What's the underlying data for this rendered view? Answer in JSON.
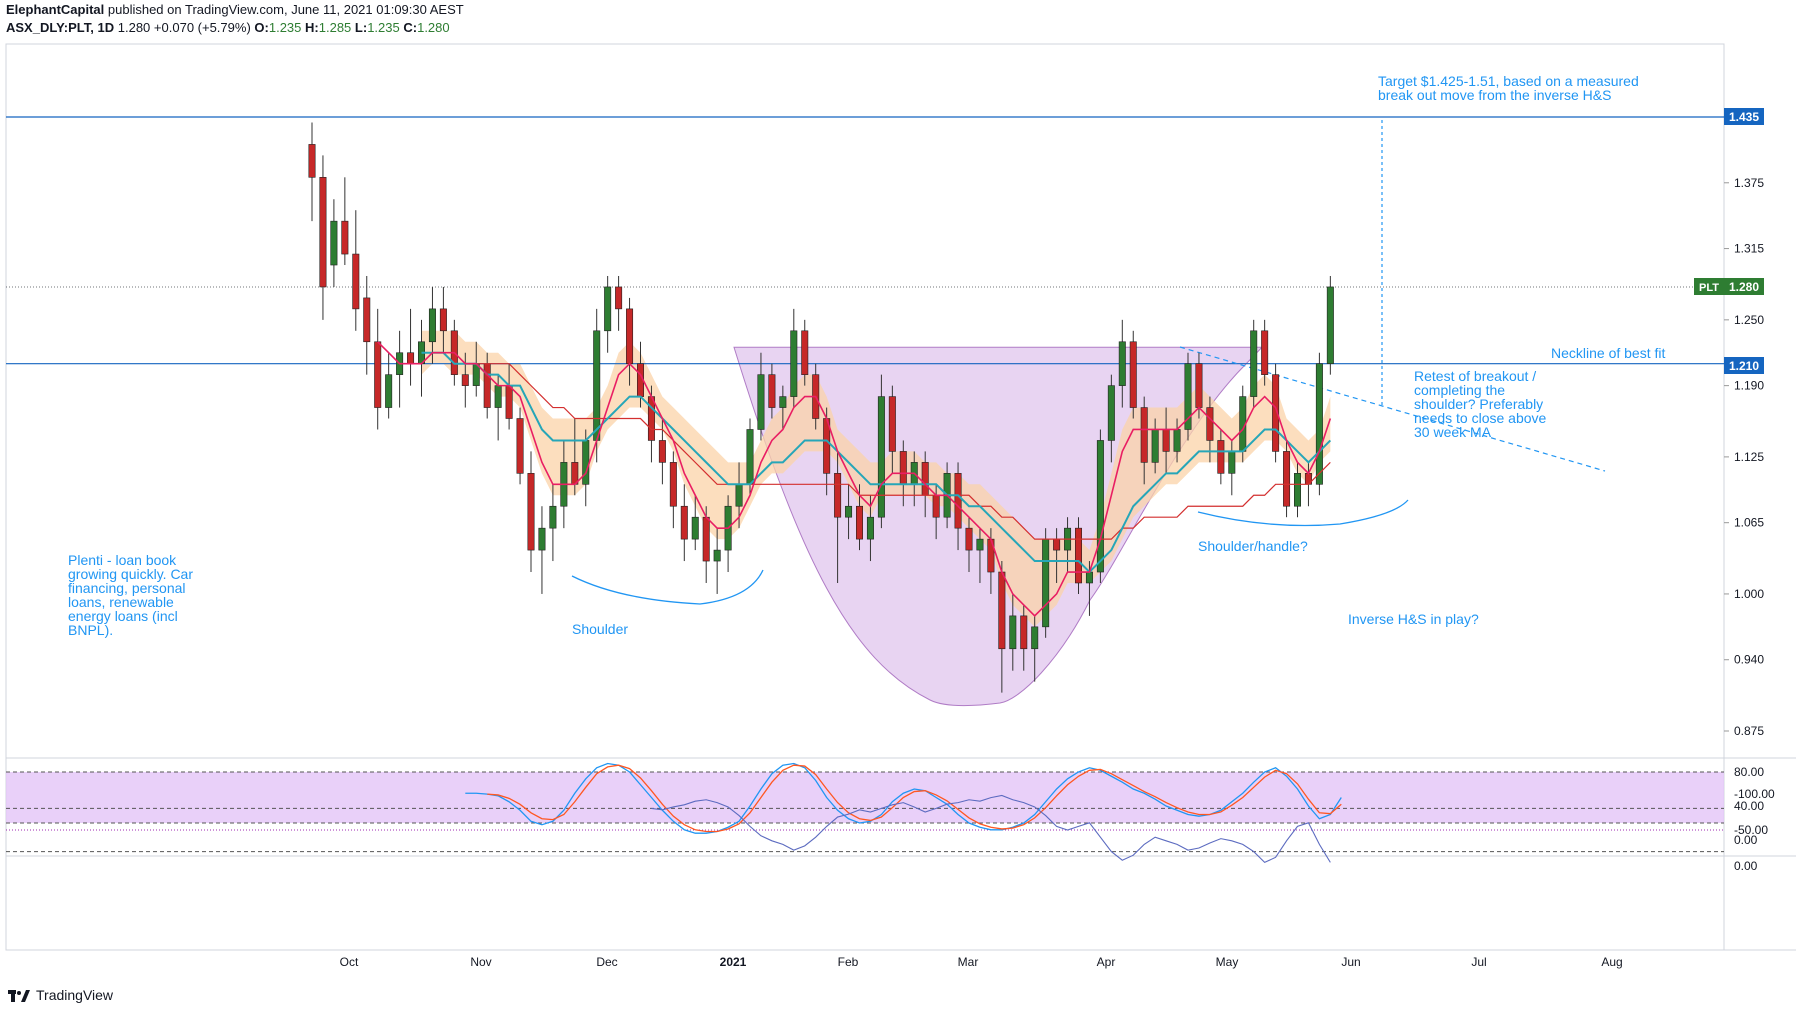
{
  "header": {
    "publisher": "ElephantCapital",
    "published_text": "published on TradingView.com, June 11, 2021 01:09:30 AEST",
    "symbol": "ASX_DLY:PLT, 1D",
    "last": "1.280",
    "change": "+0.070 (+5.79%)",
    "open_label": "O:",
    "open": "1.235",
    "high_label": "H:",
    "high": "1.285",
    "low_label": "L:",
    "low": "1.235",
    "close_label": "C:",
    "close": "1.280"
  },
  "footer": {
    "brand": "TradingView"
  },
  "colors": {
    "up": "#2e7d32",
    "down": "#c62828",
    "accent": "#2196f3",
    "ema_fast": "#e91e63",
    "ema_mid": "#26a6b8",
    "ema_slow": "#d32f2f",
    "band": "#fbd3a8",
    "pattern": "#d9b8ea",
    "stoch_k": "#2196f3",
    "stoch_d": "#ff5722",
    "osc_bg": "#e3c4f7",
    "osc2": "#5c6bc0"
  },
  "annotations": {
    "target": [
      "Target $1.425-1.51, based on a measured",
      "break out move from the inverse H&S"
    ],
    "neckline": "Neckline of best fit",
    "retest": [
      "Retest of breakout /",
      "completing the",
      "shoulder? Preferably",
      "needs to close above",
      "30 week MA"
    ],
    "shoulder_handle": "Shoulder/handle?",
    "inverse_hs": "Inverse H&S in play?",
    "shoulder": "Shoulder",
    "plenti": [
      "Plenti - loan book",
      "growing quickly. Car",
      "financing, personal",
      "loans, renewable",
      "energy loans (incl",
      "BNPL)."
    ]
  },
  "chart_data": [
    {
      "type": "candlestick",
      "symbol": "PLT",
      "price_axis": [
        "1.435",
        "1.375",
        "1.315",
        "1.250",
        "1.190",
        "1.125",
        "1.065",
        "1.000",
        "0.940",
        "0.875"
      ],
      "x_axis": [
        "Oct",
        "Nov",
        "Dec",
        "2021",
        "Feb",
        "Mar",
        "Apr",
        "May",
        "Jun",
        "Jul",
        "Aug"
      ],
      "last_price_label": "PLT",
      "last_price": "1.280",
      "levels": [
        {
          "label": "1.435",
          "value": 1.435
        },
        {
          "label": "1.210",
          "value": 1.21
        }
      ],
      "candles": [
        [
          1.41,
          1.43,
          1.34,
          1.38
        ],
        [
          1.38,
          1.4,
          1.25,
          1.28
        ],
        [
          1.3,
          1.36,
          1.28,
          1.34
        ],
        [
          1.34,
          1.38,
          1.3,
          1.31
        ],
        [
          1.31,
          1.35,
          1.24,
          1.26
        ],
        [
          1.27,
          1.29,
          1.2,
          1.23
        ],
        [
          1.23,
          1.26,
          1.15,
          1.17
        ],
        [
          1.17,
          1.22,
          1.16,
          1.2
        ],
        [
          1.2,
          1.24,
          1.17,
          1.22
        ],
        [
          1.22,
          1.26,
          1.19,
          1.21
        ],
        [
          1.21,
          1.25,
          1.18,
          1.23
        ],
        [
          1.23,
          1.28,
          1.21,
          1.26
        ],
        [
          1.26,
          1.28,
          1.22,
          1.24
        ],
        [
          1.24,
          1.25,
          1.19,
          1.2
        ],
        [
          1.2,
          1.22,
          1.17,
          1.19
        ],
        [
          1.19,
          1.23,
          1.18,
          1.21
        ],
        [
          1.21,
          1.22,
          1.16,
          1.17
        ],
        [
          1.17,
          1.2,
          1.14,
          1.19
        ],
        [
          1.19,
          1.21,
          1.15,
          1.16
        ],
        [
          1.16,
          1.17,
          1.1,
          1.11
        ],
        [
          1.11,
          1.13,
          1.02,
          1.04
        ],
        [
          1.04,
          1.08,
          1.0,
          1.06
        ],
        [
          1.06,
          1.1,
          1.03,
          1.08
        ],
        [
          1.08,
          1.14,
          1.06,
          1.12
        ],
        [
          1.12,
          1.16,
          1.09,
          1.1
        ],
        [
          1.1,
          1.15,
          1.08,
          1.14
        ],
        [
          1.14,
          1.26,
          1.12,
          1.24
        ],
        [
          1.24,
          1.29,
          1.22,
          1.28
        ],
        [
          1.28,
          1.29,
          1.24,
          1.26
        ],
        [
          1.26,
          1.27,
          1.19,
          1.21
        ],
        [
          1.21,
          1.23,
          1.17,
          1.18
        ],
        [
          1.18,
          1.19,
          1.12,
          1.14
        ],
        [
          1.14,
          1.16,
          1.1,
          1.12
        ],
        [
          1.12,
          1.13,
          1.06,
          1.08
        ],
        [
          1.08,
          1.1,
          1.03,
          1.05
        ],
        [
          1.05,
          1.09,
          1.04,
          1.07
        ],
        [
          1.07,
          1.08,
          1.01,
          1.03
        ],
        [
          1.03,
          1.06,
          1.0,
          1.04
        ],
        [
          1.04,
          1.09,
          1.02,
          1.08
        ],
        [
          1.08,
          1.12,
          1.06,
          1.1
        ],
        [
          1.1,
          1.16,
          1.09,
          1.15
        ],
        [
          1.15,
          1.22,
          1.14,
          1.2
        ],
        [
          1.2,
          1.21,
          1.16,
          1.17
        ],
        [
          1.17,
          1.19,
          1.15,
          1.18
        ],
        [
          1.18,
          1.26,
          1.17,
          1.24
        ],
        [
          1.24,
          1.25,
          1.19,
          1.2
        ],
        [
          1.2,
          1.21,
          1.15,
          1.16
        ],
        [
          1.16,
          1.17,
          1.09,
          1.11
        ],
        [
          1.11,
          1.13,
          1.01,
          1.07
        ],
        [
          1.07,
          1.1,
          1.05,
          1.08
        ],
        [
          1.08,
          1.1,
          1.04,
          1.05
        ],
        [
          1.05,
          1.09,
          1.03,
          1.07
        ],
        [
          1.07,
          1.2,
          1.06,
          1.18
        ],
        [
          1.18,
          1.19,
          1.11,
          1.13
        ],
        [
          1.13,
          1.14,
          1.08,
          1.1
        ],
        [
          1.1,
          1.13,
          1.08,
          1.12
        ],
        [
          1.12,
          1.13,
          1.07,
          1.09
        ],
        [
          1.09,
          1.1,
          1.05,
          1.07
        ],
        [
          1.07,
          1.12,
          1.06,
          1.11
        ],
        [
          1.11,
          1.12,
          1.04,
          1.06
        ],
        [
          1.06,
          1.07,
          1.02,
          1.04
        ],
        [
          1.04,
          1.06,
          1.01,
          1.05
        ],
        [
          1.05,
          1.06,
          1.0,
          1.02
        ],
        [
          1.02,
          1.03,
          0.91,
          0.95
        ],
        [
          0.95,
          1.0,
          0.93,
          0.98
        ],
        [
          0.98,
          0.99,
          0.93,
          0.95
        ],
        [
          0.95,
          0.98,
          0.92,
          0.97
        ],
        [
          0.97,
          1.06,
          0.96,
          1.05
        ],
        [
          1.05,
          1.06,
          1.01,
          1.04
        ],
        [
          1.04,
          1.07,
          1.02,
          1.06
        ],
        [
          1.06,
          1.07,
          1.0,
          1.01
        ],
        [
          1.01,
          1.03,
          0.98,
          1.02
        ],
        [
          1.02,
          1.15,
          1.01,
          1.14
        ],
        [
          1.14,
          1.2,
          1.12,
          1.19
        ],
        [
          1.19,
          1.25,
          1.17,
          1.23
        ],
        [
          1.23,
          1.24,
          1.16,
          1.17
        ],
        [
          1.17,
          1.18,
          1.1,
          1.12
        ],
        [
          1.12,
          1.16,
          1.11,
          1.15
        ],
        [
          1.15,
          1.17,
          1.11,
          1.13
        ],
        [
          1.13,
          1.16,
          1.12,
          1.15
        ],
        [
          1.15,
          1.22,
          1.14,
          1.21
        ],
        [
          1.21,
          1.22,
          1.16,
          1.17
        ],
        [
          1.17,
          1.18,
          1.12,
          1.14
        ],
        [
          1.14,
          1.15,
          1.1,
          1.11
        ],
        [
          1.11,
          1.14,
          1.09,
          1.13
        ],
        [
          1.13,
          1.19,
          1.12,
          1.18
        ],
        [
          1.18,
          1.25,
          1.17,
          1.24
        ],
        [
          1.24,
          1.25,
          1.19,
          1.2
        ],
        [
          1.2,
          1.21,
          1.12,
          1.13
        ],
        [
          1.13,
          1.14,
          1.07,
          1.08
        ],
        [
          1.08,
          1.12,
          1.07,
          1.11
        ],
        [
          1.11,
          1.12,
          1.08,
          1.1
        ],
        [
          1.1,
          1.22,
          1.09,
          1.21
        ],
        [
          1.21,
          1.29,
          1.2,
          1.28
        ]
      ],
      "ema_fast": [
        null,
        null,
        null,
        null,
        null,
        null,
        1.23,
        1.22,
        1.21,
        1.21,
        1.21,
        1.22,
        1.22,
        1.22,
        1.21,
        1.21,
        1.2,
        1.19,
        1.19,
        1.18,
        1.15,
        1.12,
        1.1,
        1.1,
        1.1,
        1.11,
        1.14,
        1.17,
        1.2,
        1.21,
        1.2,
        1.18,
        1.16,
        1.14,
        1.11,
        1.09,
        1.07,
        1.06,
        1.06,
        1.07,
        1.09,
        1.12,
        1.14,
        1.15,
        1.17,
        1.18,
        1.18,
        1.16,
        1.13,
        1.11,
        1.09,
        1.08,
        1.1,
        1.11,
        1.11,
        1.11,
        1.1,
        1.09,
        1.09,
        1.08,
        1.07,
        1.06,
        1.05,
        1.02,
        1.0,
        0.99,
        0.98,
        0.99,
        1.0,
        1.02,
        1.02,
        1.02,
        1.05,
        1.09,
        1.13,
        1.15,
        1.15,
        1.15,
        1.15,
        1.15,
        1.16,
        1.17,
        1.16,
        1.15,
        1.14,
        1.15,
        1.17,
        1.18,
        1.17,
        1.14,
        1.12,
        1.11,
        1.13,
        1.16
      ],
      "ema_mid": [
        null,
        null,
        null,
        null,
        null,
        null,
        null,
        null,
        null,
        null,
        1.22,
        1.22,
        1.22,
        1.21,
        1.21,
        1.21,
        1.2,
        1.2,
        1.19,
        1.19,
        1.17,
        1.15,
        1.14,
        1.14,
        1.14,
        1.14,
        1.15,
        1.16,
        1.17,
        1.18,
        1.18,
        1.17,
        1.16,
        1.15,
        1.14,
        1.13,
        1.12,
        1.11,
        1.1,
        1.1,
        1.1,
        1.11,
        1.12,
        1.12,
        1.13,
        1.14,
        1.14,
        1.14,
        1.13,
        1.12,
        1.11,
        1.1,
        1.1,
        1.1,
        1.1,
        1.1,
        1.1,
        1.1,
        1.09,
        1.09,
        1.08,
        1.08,
        1.07,
        1.06,
        1.05,
        1.04,
        1.03,
        1.03,
        1.03,
        1.03,
        1.03,
        1.02,
        1.03,
        1.04,
        1.06,
        1.08,
        1.09,
        1.1,
        1.11,
        1.11,
        1.12,
        1.13,
        1.13,
        1.13,
        1.13,
        1.13,
        1.14,
        1.15,
        1.15,
        1.14,
        1.13,
        1.12,
        1.13,
        1.14
      ],
      "ema_slow": [
        null,
        null,
        null,
        null,
        null,
        null,
        null,
        null,
        null,
        null,
        null,
        null,
        null,
        null,
        1.21,
        1.21,
        1.21,
        1.21,
        1.21,
        1.2,
        1.19,
        1.18,
        1.17,
        1.17,
        1.16,
        1.16,
        1.16,
        1.16,
        1.16,
        1.16,
        1.16,
        1.15,
        1.15,
        1.14,
        1.13,
        1.12,
        1.11,
        1.1,
        1.1,
        1.1,
        1.1,
        1.1,
        1.1,
        1.1,
        1.1,
        1.1,
        1.1,
        1.1,
        1.1,
        1.1,
        1.09,
        1.09,
        1.09,
        1.09,
        1.09,
        1.09,
        1.09,
        1.09,
        1.09,
        1.09,
        1.09,
        1.08,
        1.08,
        1.07,
        1.07,
        1.06,
        1.05,
        1.05,
        1.05,
        1.05,
        1.05,
        1.05,
        1.05,
        1.05,
        1.06,
        1.06,
        1.07,
        1.07,
        1.07,
        1.07,
        1.08,
        1.08,
        1.08,
        1.08,
        1.08,
        1.08,
        1.09,
        1.09,
        1.1,
        1.1,
        1.1,
        1.1,
        1.11,
        1.12
      ]
    },
    {
      "type": "line",
      "name": "oscillator_1",
      "y_axis": [
        "80.00",
        "40.00",
        "0.00"
      ],
      "ylim": [
        0,
        100
      ],
      "bands": [
        20,
        80
      ],
      "series": [
        {
          "name": "",
          "values": [
            null,
            null,
            null,
            null,
            null,
            null,
            null,
            null,
            null,
            null,
            null,
            null,
            null,
            null,
            55,
            55,
            54,
            52,
            45,
            35,
            22,
            18,
            22,
            35,
            55,
            72,
            85,
            90,
            88,
            80,
            65,
            50,
            35,
            22,
            12,
            8,
            8,
            10,
            15,
            22,
            40,
            60,
            78,
            88,
            90,
            85,
            70,
            50,
            35,
            25,
            20,
            22,
            30,
            45,
            55,
            60,
            58,
            50,
            42,
            30,
            20,
            15,
            12,
            12,
            15,
            20,
            30,
            45,
            60,
            72,
            80,
            85,
            82,
            75,
            68,
            60,
            55,
            48,
            40,
            35,
            30,
            28,
            30,
            35,
            45,
            55,
            68,
            80,
            85,
            75,
            60,
            40,
            25,
            30,
            50
          ]
        },
        {
          "name": "",
          "values": [
            null,
            null,
            null,
            null,
            null,
            null,
            null,
            null,
            null,
            null,
            null,
            null,
            null,
            null,
            null,
            null,
            54,
            53,
            49,
            42,
            32,
            25,
            24,
            30,
            45,
            62,
            78,
            86,
            88,
            84,
            73,
            58,
            42,
            28,
            18,
            12,
            10,
            10,
            13,
            19,
            32,
            50,
            68,
            82,
            88,
            87,
            77,
            60,
            44,
            32,
            25,
            23,
            27,
            38,
            50,
            57,
            58,
            53,
            46,
            36,
            26,
            19,
            15,
            13,
            14,
            18,
            26,
            38,
            52,
            65,
            75,
            82,
            83,
            78,
            71,
            64,
            57,
            51,
            44,
            38,
            33,
            30,
            30,
            33,
            41,
            50,
            62,
            74,
            82,
            78,
            66,
            48,
            32,
            31,
            42
          ]
        }
      ]
    },
    {
      "type": "line",
      "name": "oscillator_2",
      "y_axis": [
        "0.00",
        "-50.00",
        "-100.00"
      ],
      "ylim": [
        -100,
        0
      ],
      "bands": [
        -20,
        -80
      ],
      "series": [
        {
          "name": "",
          "values": [
            null,
            null,
            null,
            null,
            null,
            null,
            null,
            null,
            null,
            null,
            null,
            null,
            null,
            null,
            null,
            null,
            null,
            null,
            null,
            null,
            null,
            null,
            null,
            null,
            null,
            null,
            null,
            null,
            null,
            null,
            null,
            -80,
            -78,
            -82,
            -85,
            -90,
            -92,
            -88,
            -82,
            -70,
            -55,
            -42,
            -35,
            -30,
            -22,
            -28,
            -40,
            -55,
            -68,
            -72,
            -78,
            -75,
            -80,
            -85,
            -88,
            -82,
            -75,
            -80,
            -86,
            -88,
            -92,
            -90,
            -95,
            -98,
            -92,
            -88,
            -82,
            -70,
            -55,
            -50,
            -55,
            -60,
            -40,
            -20,
            -8,
            -15,
            -30,
            -40,
            -35,
            -30,
            -22,
            -25,
            -32,
            -38,
            -35,
            -30,
            -20,
            -5,
            -12,
            -35,
            -55,
            -60,
            -30,
            -5
          ]
        }
      ]
    }
  ]
}
